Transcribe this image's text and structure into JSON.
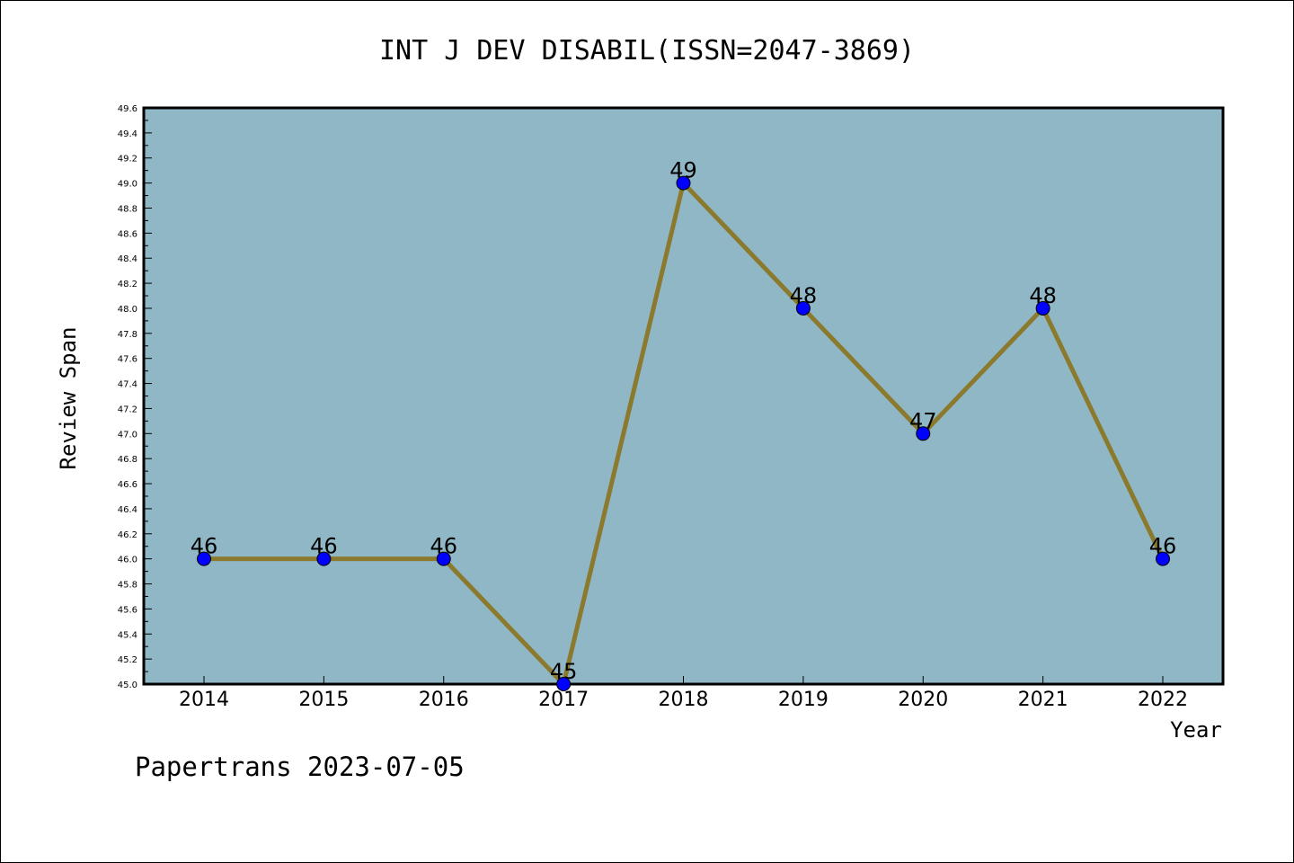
{
  "chart_data": {
    "type": "line",
    "title": "INT J DEV DISABIL(ISSN=2047-3869)",
    "xlabel": "Year",
    "ylabel": "Review Span",
    "categories": [
      "2014",
      "2015",
      "2016",
      "2017",
      "2018",
      "2019",
      "2020",
      "2021",
      "2022"
    ],
    "values": [
      46,
      46,
      46,
      45,
      49,
      48,
      47,
      48,
      46
    ],
    "ylim": [
      45.0,
      49.6
    ],
    "ytick_step": 0.2,
    "data_labels": true,
    "grid": false,
    "colors": {
      "plot_background": "#8fb7c5",
      "line": "#8b7a2e",
      "marker": "#0000ff"
    }
  },
  "footer": {
    "text": "Papertrans 2023-07-05"
  }
}
